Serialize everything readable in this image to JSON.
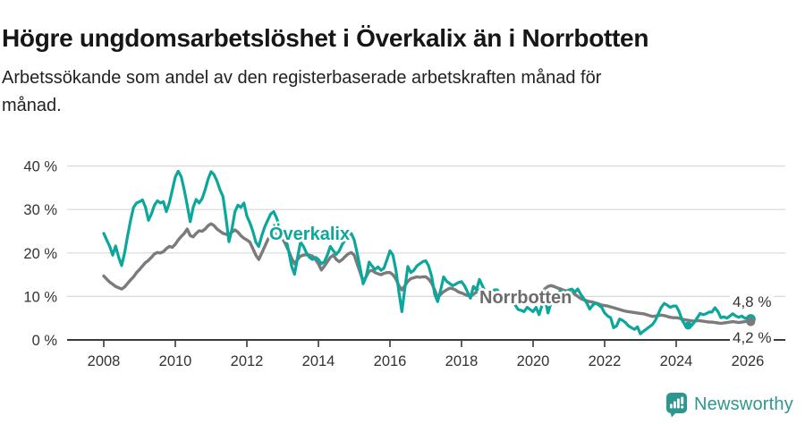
{
  "header": {
    "title": "Högre ungdomsarbetslöshet i Överkalix än i Norrbotten",
    "subtitle_lines": [
      "Arbetssökande som andel av den registerbaserade arbetskraften månad för",
      "månad."
    ]
  },
  "chart_data": {
    "type": "line",
    "unit": "%",
    "start": "2008-01",
    "frequency": "monthly",
    "grid": true,
    "legend": "inline-labels",
    "x_axis": {
      "ticks": [
        {
          "t": 2008,
          "label": "2008"
        },
        {
          "t": 2010,
          "label": "2010"
        },
        {
          "t": 2012,
          "label": "2012"
        },
        {
          "t": 2014,
          "label": "2014"
        },
        {
          "t": 2016,
          "label": "2016"
        },
        {
          "t": 2018,
          "label": "2018"
        },
        {
          "t": 2020,
          "label": "2020"
        },
        {
          "t": 2022,
          "label": "2022"
        },
        {
          "t": 2024,
          "label": "2024"
        },
        {
          "t": 2026,
          "label": "2026"
        }
      ]
    },
    "y_axis": {
      "min": 0,
      "max": 40,
      "ticks": [
        {
          "v": 0,
          "label": "0 %"
        },
        {
          "v": 10,
          "label": "10 %"
        },
        {
          "v": 20,
          "label": "20 %"
        },
        {
          "v": 30,
          "label": "30 %"
        },
        {
          "v": 40,
          "label": "40 %"
        }
      ]
    },
    "series": [
      {
        "name": "Överkalix",
        "color": "#0CA79C",
        "width": 3.2,
        "values": [
          24.5,
          23.0,
          21.5,
          19.5,
          21.6,
          19.0,
          17.1,
          20.0,
          24.0,
          27.5,
          30.5,
          31.5,
          31.8,
          32.2,
          30.5,
          27.5,
          29.0,
          31.0,
          32.0,
          31.5,
          31.8,
          29.5,
          31.5,
          34.5,
          37.5,
          38.8,
          37.5,
          34.5,
          31.0,
          27.2,
          30.5,
          32.3,
          31.5,
          32.5,
          34.5,
          37.0,
          38.7,
          38.0,
          36.5,
          34.5,
          33.0,
          28.0,
          22.6,
          25.5,
          29.5,
          31.0,
          30.5,
          31.5,
          28.5,
          27.0,
          25.0,
          22.5,
          21.5,
          24.0,
          26.0,
          27.5,
          29.0,
          29.5,
          28.0,
          26.0,
          25.0,
          23.5,
          20.5,
          17.0,
          15.1,
          19.0,
          22.5,
          21.5,
          20.0,
          19.0,
          18.5,
          19.0,
          18.5,
          17.5,
          18.0,
          19.5,
          21.5,
          20.5,
          19.7,
          20.5,
          22.0,
          23.0,
          24.0,
          24.5,
          23.0,
          20.0,
          16.5,
          12.9,
          14.5,
          17.9,
          17.0,
          16.2,
          16.8,
          16.0,
          16.5,
          18.5,
          20.5,
          19.5,
          16.0,
          11.0,
          6.5,
          12.0,
          16.9,
          15.5,
          16.0,
          17.0,
          17.5,
          18.0,
          18.2,
          17.0,
          14.5,
          10.5,
          8.8,
          11.5,
          14.5,
          13.5,
          13.0,
          12.5,
          12.8,
          13.2,
          13.4,
          12.5,
          11.0,
          9.6,
          12.3,
          11.5,
          13.9,
          12.5,
          11.0,
          10.5,
          11.0,
          11.5,
          11.5,
          10.5,
          9.5,
          8.5,
          9.0,
          9.5,
          8.0,
          7.0,
          6.8,
          6.5,
          7.5,
          7.0,
          6.5,
          7.5,
          5.8,
          8.0,
          9.5,
          6.2,
          8.5,
          9.5,
          10.0,
          11.3,
          10.5,
          11.0,
          11.5,
          11.7,
          11.0,
          11.7,
          10.5,
          9.5,
          8.5,
          7.1,
          8.0,
          8.5,
          8.0,
          7.5,
          6.2,
          5.5,
          5.1,
          2.8,
          3.2,
          4.8,
          4.5,
          4.0,
          3.2,
          2.8,
          2.4,
          3.0,
          1.4,
          2.0,
          2.5,
          3.0,
          3.5,
          4.5,
          6.0,
          7.5,
          8.4,
          8.0,
          7.5,
          7.8,
          7.8,
          6.5,
          4.5,
          3.4,
          3.3,
          3.2,
          4.0,
          5.0,
          6.1,
          5.8,
          6.0,
          6.4,
          6.4,
          7.4,
          6.5,
          5.1,
          5.3,
          5.0,
          5.5,
          6.0,
          5.5,
          5.2,
          5.5,
          5.0,
          5.0,
          4.8
        ]
      },
      {
        "name": "Norrbotten",
        "color": "#7B7B7B",
        "width": 3.4,
        "values": [
          14.7,
          14.0,
          13.3,
          12.8,
          12.3,
          12.0,
          11.7,
          12.2,
          13.0,
          13.8,
          14.5,
          15.5,
          16.2,
          17.0,
          17.8,
          18.3,
          19.0,
          19.8,
          20.1,
          20.0,
          20.3,
          21.0,
          21.5,
          21.3,
          22.0,
          23.0,
          23.8,
          24.5,
          25.5,
          24.0,
          23.7,
          24.5,
          25.1,
          25.0,
          25.5,
          26.3,
          26.7,
          26.3,
          25.5,
          25.0,
          24.5,
          24.3,
          24.2,
          24.8,
          25.3,
          24.8,
          24.0,
          23.4,
          23.0,
          22.5,
          21.0,
          19.5,
          18.5,
          20.0,
          21.5,
          23.0,
          24.2,
          24.8,
          24.0,
          23.5,
          23.2,
          22.0,
          20.5,
          18.8,
          17.5,
          18.5,
          19.3,
          19.5,
          19.6,
          19.5,
          19.3,
          18.5,
          17.5,
          16.1,
          17.0,
          18.0,
          19.0,
          19.5,
          18.5,
          18.0,
          18.5,
          19.2,
          19.8,
          20.1,
          19.5,
          17.5,
          15.5,
          13.5,
          14.5,
          15.8,
          16.0,
          15.5,
          15.2,
          15.0,
          15.3,
          15.5,
          15.5,
          15.0,
          14.0,
          12.5,
          11.5,
          12.5,
          13.5,
          14.1,
          14.3,
          14.5,
          14.4,
          14.5,
          14.5,
          14.0,
          13.0,
          11.5,
          9.8,
          10.5,
          11.1,
          11.5,
          11.9,
          11.8,
          11.5,
          11.0,
          10.8,
          10.5,
          10.2,
          10.0,
          10.5,
          11.0,
          11.5,
          11.2,
          10.8,
          10.5,
          10.3,
          10.2,
          10.0,
          9.8,
          9.5,
          9.2,
          9.0,
          9.3,
          9.5,
          9.3,
          9.0,
          8.8,
          8.9,
          9.0,
          9.2,
          9.3,
          9.8,
          11.0,
          11.8,
          12.3,
          12.5,
          12.3,
          12.0,
          11.8,
          11.5,
          11.3,
          11.0,
          10.8,
          10.5,
          10.0,
          9.5,
          9.2,
          9.0,
          8.8,
          8.7,
          8.5,
          8.3,
          8.0,
          7.9,
          7.8,
          7.6,
          7.4,
          7.2,
          7.0,
          6.8,
          6.6,
          6.5,
          6.4,
          6.3,
          6.2,
          6.1,
          6.0,
          5.8,
          5.6,
          5.4,
          5.5,
          5.6,
          5.7,
          5.6,
          5.4,
          5.2,
          5.1,
          5.1,
          5.0,
          4.8,
          4.6,
          4.5,
          4.4,
          4.3,
          4.4,
          4.4,
          4.3,
          4.2,
          4.1,
          4.1,
          4.0,
          3.9,
          3.8,
          3.9,
          4.0,
          4.1,
          4.2,
          4.1,
          4.0,
          4.1,
          4.2,
          4.3,
          4.2
        ]
      }
    ],
    "dots": [
      {
        "series": 0,
        "index": 196,
        "r": 4.5
      },
      {
        "series": 0,
        "index": 217,
        "r": 5.5
      },
      {
        "series": 1,
        "index": 217,
        "r": 5.0
      }
    ],
    "end_labels": [
      {
        "series": "Överkalix",
        "text": "4,8 %"
      },
      {
        "series": "Norrbotten",
        "text": "4,2 %"
      }
    ]
  },
  "footer": {
    "brand": "Newsworthy",
    "brand_color": "#2E968E"
  }
}
